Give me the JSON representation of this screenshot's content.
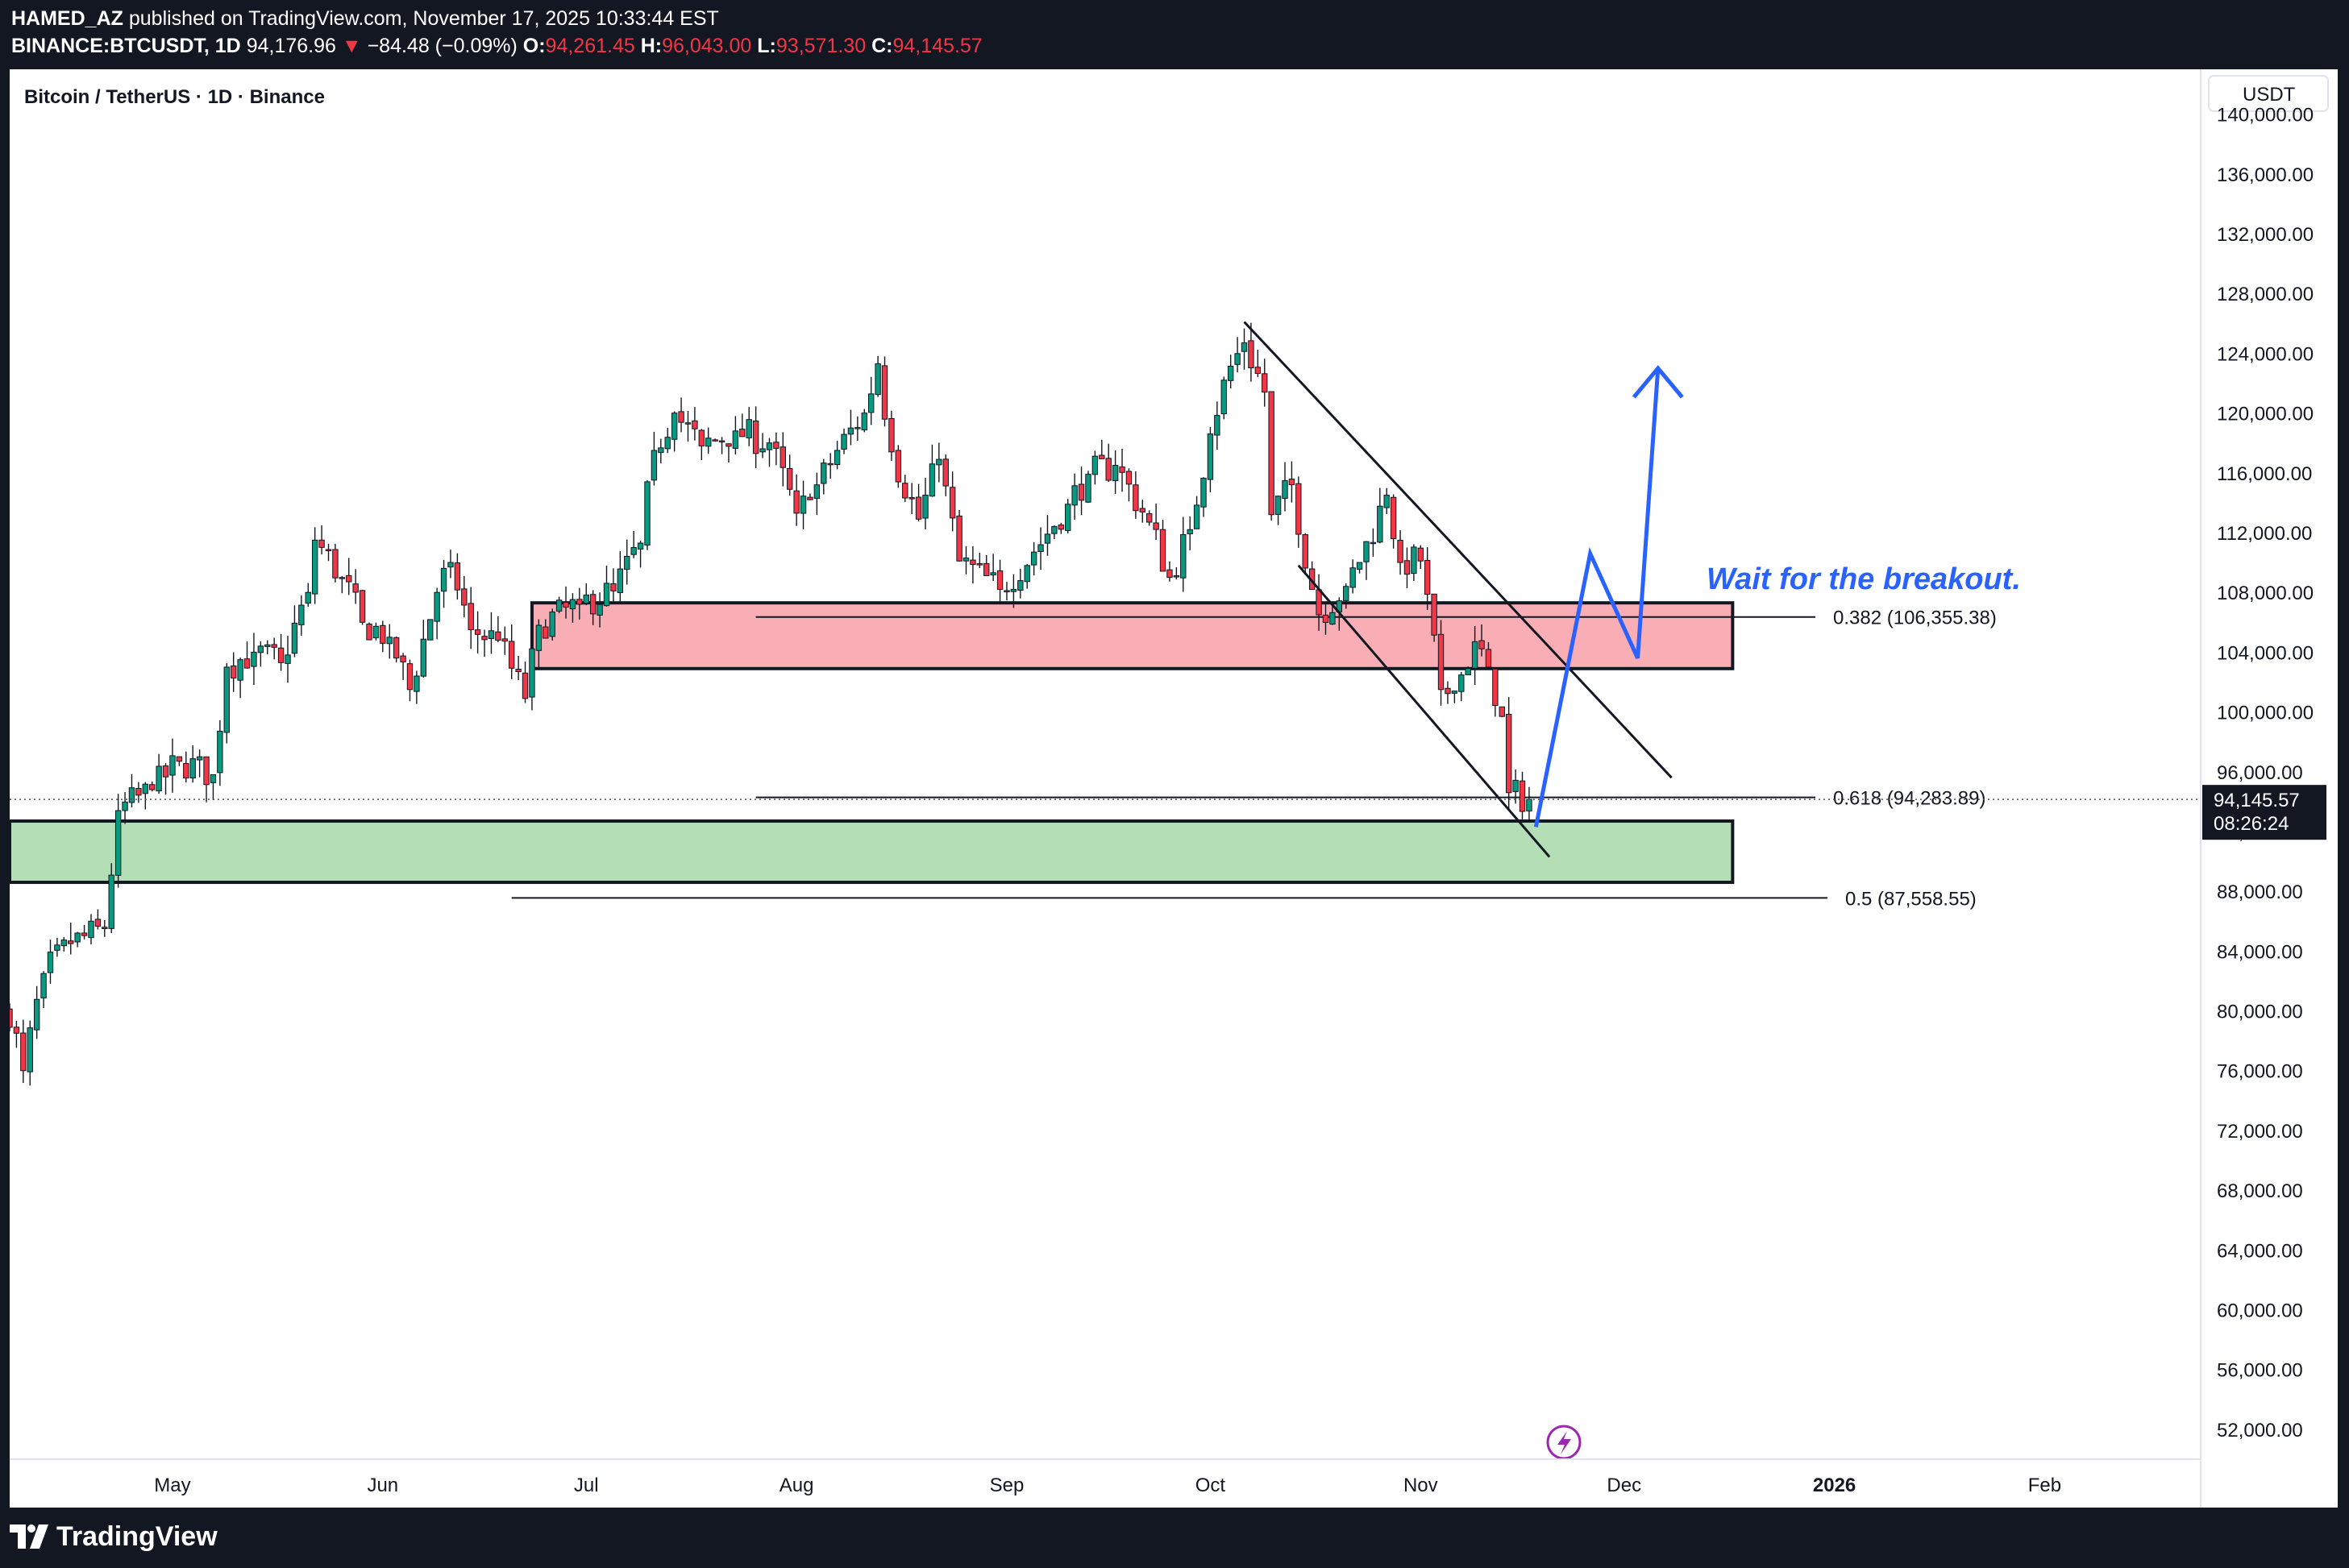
{
  "header": {
    "author": "HAMED_AZ",
    "published": "published on TradingView.com, November 17, 2025 10:33:44 EST",
    "symbol": "BINANCE:BTCUSDT, 1D",
    "last": "94,176.96",
    "change_arrow": "▼",
    "change": "−84.48 (−0.09%)",
    "open_label": "O:",
    "open": "94,261.45",
    "high_label": "H:",
    "high": "96,043.00",
    "low_label": "L:",
    "low": "93,571.30",
    "close_label": "C:",
    "close": "94,145.57"
  },
  "chart_title": "Bitcoin / TetherUS · 1D · Binance",
  "footer": {
    "brand": "TradingView"
  },
  "colors": {
    "up": "#089981",
    "down": "#f23645",
    "resistance_zone": "#f8aeb4",
    "support_zone": "#b4dfb6",
    "projection": "#2962ff",
    "background": "#131722"
  },
  "chart_data": {
    "type": "candlestick",
    "interval": "1D",
    "currency": "USDT",
    "yaxis_title": "USDT",
    "yticks": [
      "140,000.00",
      "136,000.00",
      "132,000.00",
      "128,000.00",
      "124,000.00",
      "120,000.00",
      "116,000.00",
      "112,000.00",
      "108,000.00",
      "104,000.00",
      "100,000.00",
      "96,000.00",
      "92,000.00",
      "88,000.00",
      "84,000.00",
      "80,000.00",
      "76,000.00",
      "72,000.00",
      "68,000.00",
      "64,000.00",
      "60,000.00",
      "56,000.00",
      "52,000.00"
    ],
    "ylim": [
      50000,
      143000
    ],
    "xlim": [
      "2025-04-07",
      "2026-02-24"
    ],
    "xticks": [
      {
        "date": "2025-05-01",
        "label": "May"
      },
      {
        "date": "2025-06-01",
        "label": "Jun"
      },
      {
        "date": "2025-07-01",
        "label": "Jul"
      },
      {
        "date": "2025-08-01",
        "label": "Aug"
      },
      {
        "date": "2025-09-01",
        "label": "Sep"
      },
      {
        "date": "2025-10-01",
        "label": "Oct"
      },
      {
        "date": "2025-11-01",
        "label": "Nov"
      },
      {
        "date": "2025-12-01",
        "label": "Dec"
      },
      {
        "date": "2026-01-01",
        "label": "2026"
      },
      {
        "date": "2026-02-01",
        "label": "Feb"
      }
    ],
    "last_price": {
      "value": 94145.57,
      "label": "94,145.57",
      "countdown": "08:26:24"
    },
    "close_path": [
      {
        "date": "2025-04-07",
        "close": 80000
      },
      {
        "date": "2025-04-09",
        "close": 76000
      },
      {
        "date": "2025-04-12",
        "close": 82500
      },
      {
        "date": "2025-04-16",
        "close": 84500
      },
      {
        "date": "2025-04-21",
        "close": 85500
      },
      {
        "date": "2025-04-23",
        "close": 93400
      },
      {
        "date": "2025-04-28",
        "close": 94800
      },
      {
        "date": "2025-05-02",
        "close": 96700
      },
      {
        "date": "2025-05-07",
        "close": 95800
      },
      {
        "date": "2025-05-09",
        "close": 103000
      },
      {
        "date": "2025-05-13",
        "close": 104000
      },
      {
        "date": "2025-05-17",
        "close": 103300
      },
      {
        "date": "2025-05-21",
        "close": 108000
      },
      {
        "date": "2025-05-22",
        "close": 111500
      },
      {
        "date": "2025-05-26",
        "close": 109000
      },
      {
        "date": "2025-05-29",
        "close": 106000
      },
      {
        "date": "2025-06-02",
        "close": 105000
      },
      {
        "date": "2025-06-05",
        "close": 101500
      },
      {
        "date": "2025-06-09",
        "close": 108000
      },
      {
        "date": "2025-06-11",
        "close": 110000
      },
      {
        "date": "2025-06-14",
        "close": 105500
      },
      {
        "date": "2025-06-18",
        "close": 104800
      },
      {
        "date": "2025-06-22",
        "close": 100900
      },
      {
        "date": "2025-06-24",
        "close": 105800
      },
      {
        "date": "2025-06-30",
        "close": 107200
      },
      {
        "date": "2025-07-05",
        "close": 108100
      },
      {
        "date": "2025-07-09",
        "close": 111300
      },
      {
        "date": "2025-07-11",
        "close": 117500
      },
      {
        "date": "2025-07-14",
        "close": 120000
      },
      {
        "date": "2025-07-18",
        "close": 117800
      },
      {
        "date": "2025-07-23",
        "close": 118800
      },
      {
        "date": "2025-07-28",
        "close": 118000
      },
      {
        "date": "2025-08-01",
        "close": 113300
      },
      {
        "date": "2025-08-03",
        "close": 114200
      },
      {
        "date": "2025-08-07",
        "close": 117500
      },
      {
        "date": "2025-08-11",
        "close": 120000
      },
      {
        "date": "2025-08-13",
        "close": 123300
      },
      {
        "date": "2025-08-15",
        "close": 117400
      },
      {
        "date": "2025-08-19",
        "close": 112900
      },
      {
        "date": "2025-08-22",
        "close": 116900
      },
      {
        "date": "2025-08-25",
        "close": 110100
      },
      {
        "date": "2025-08-31",
        "close": 108200
      },
      {
        "date": "2025-09-05",
        "close": 110700
      },
      {
        "date": "2025-09-10",
        "close": 113900
      },
      {
        "date": "2025-09-13",
        "close": 115900
      },
      {
        "date": "2025-09-17",
        "close": 116500
      },
      {
        "date": "2025-09-22",
        "close": 112700
      },
      {
        "date": "2025-09-25",
        "close": 109000
      },
      {
        "date": "2025-09-28",
        "close": 112200
      },
      {
        "date": "2025-10-01",
        "close": 118600
      },
      {
        "date": "2025-10-03",
        "close": 122200
      },
      {
        "date": "2025-10-06",
        "close": 124700
      },
      {
        "date": "2025-10-09",
        "close": 121400
      },
      {
        "date": "2025-10-10",
        "close": 113200
      },
      {
        "date": "2025-10-13",
        "close": 115200
      },
      {
        "date": "2025-10-16",
        "close": 108200
      },
      {
        "date": "2025-10-17",
        "close": 106500
      },
      {
        "date": "2025-10-21",
        "close": 108400
      },
      {
        "date": "2025-10-23",
        "close": 110000
      },
      {
        "date": "2025-10-27",
        "close": 114500
      },
      {
        "date": "2025-10-29",
        "close": 110000
      },
      {
        "date": "2025-11-01",
        "close": 110100
      },
      {
        "date": "2025-11-04",
        "close": 101500
      },
      {
        "date": "2025-11-06",
        "close": 101400
      },
      {
        "date": "2025-11-09",
        "close": 104700
      },
      {
        "date": "2025-11-11",
        "close": 103000
      },
      {
        "date": "2025-11-13",
        "close": 99700
      },
      {
        "date": "2025-11-14",
        "close": 94600
      },
      {
        "date": "2025-11-17",
        "close": 94145
      }
    ],
    "zones": [
      {
        "name": "resistance zone",
        "from_date": "2025-06-23",
        "to_date": "2025-12-17",
        "from_price": 102900,
        "to_price": 107300,
        "color": "#f8aeb4"
      },
      {
        "name": "support zone",
        "from_date": "2025-04-07",
        "to_date": "2025-12-17",
        "from_price": 88600,
        "to_price": 92700,
        "color": "#b4dfb6"
      }
    ],
    "fib_levels": [
      {
        "level": "0.382",
        "price": 106355.38,
        "label": "0.382 (106,355.38)",
        "from_date": "2025-07-26"
      },
      {
        "level": "0.618",
        "price": 94283.89,
        "label": "0.618 (94,283.89)",
        "from_date": "2025-07-26"
      },
      {
        "level": "0.5",
        "price": 87558.55,
        "label": "0.5 (87,558.55)",
        "from_date": "2025-06-20"
      }
    ],
    "channel": {
      "upper": [
        {
          "date": "2025-10-06",
          "price": 126100
        },
        {
          "date": "2025-12-08",
          "price": 95600
        }
      ],
      "lower": [
        {
          "date": "2025-10-14",
          "price": 109800
        },
        {
          "date": "2025-11-20",
          "price": 90300
        }
      ]
    },
    "projection": [
      {
        "date": "2025-11-18",
        "price": 92300
      },
      {
        "date": "2025-11-26",
        "price": 110600
      },
      {
        "date": "2025-12-03",
        "price": 103600
      },
      {
        "date": "2025-12-06",
        "price": 123000
      }
    ],
    "annotation": "Wait for the breakout."
  }
}
